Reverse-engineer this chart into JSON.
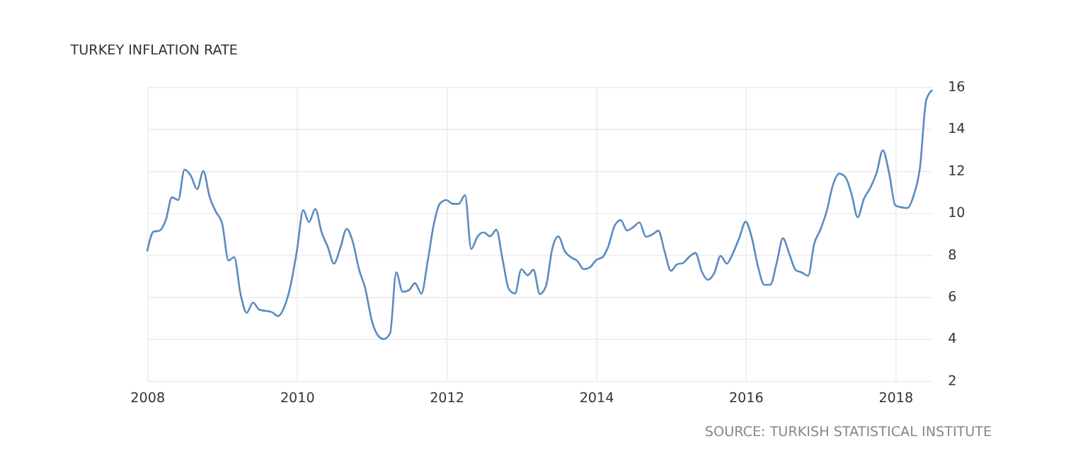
{
  "chart_data": {
    "type": "line",
    "title": "TURKEY INFLATION RATE",
    "annotations": [
      "SOURCE: TURKISH STATISTICAL INSTITUTE"
    ],
    "x": [
      "2008-01",
      "2008-02",
      "2008-03",
      "2008-04",
      "2008-05",
      "2008-06",
      "2008-07",
      "2008-08",
      "2008-09",
      "2008-10",
      "2008-11",
      "2008-12",
      "2009-01",
      "2009-02",
      "2009-03",
      "2009-04",
      "2009-05",
      "2009-06",
      "2009-07",
      "2009-08",
      "2009-09",
      "2009-10",
      "2009-11",
      "2009-12",
      "2010-01",
      "2010-02",
      "2010-03",
      "2010-04",
      "2010-05",
      "2010-06",
      "2010-07",
      "2010-08",
      "2010-09",
      "2010-10",
      "2010-11",
      "2010-12",
      "2011-01",
      "2011-02",
      "2011-03",
      "2011-04",
      "2011-05",
      "2011-06",
      "2011-07",
      "2011-08",
      "2011-09",
      "2011-10",
      "2011-11",
      "2011-12",
      "2012-01",
      "2012-02",
      "2012-03",
      "2012-04",
      "2012-05",
      "2012-06",
      "2012-07",
      "2012-08",
      "2012-09",
      "2012-10",
      "2012-11",
      "2012-12",
      "2013-01",
      "2013-02",
      "2013-03",
      "2013-04",
      "2013-05",
      "2013-06",
      "2013-07",
      "2013-08",
      "2013-09",
      "2013-10",
      "2013-11",
      "2013-12",
      "2014-01",
      "2014-02",
      "2014-03",
      "2014-04",
      "2014-05",
      "2014-06",
      "2014-07",
      "2014-08",
      "2014-09",
      "2014-10",
      "2014-11",
      "2014-12",
      "2015-01",
      "2015-02",
      "2015-03",
      "2015-04",
      "2015-05",
      "2015-06",
      "2015-07",
      "2015-08",
      "2015-09",
      "2015-10",
      "2015-11",
      "2015-12",
      "2016-01",
      "2016-02",
      "2016-03",
      "2016-04",
      "2016-05",
      "2016-06",
      "2016-07",
      "2016-08",
      "2016-09",
      "2016-10",
      "2016-11",
      "2016-12",
      "2017-01",
      "2017-02",
      "2017-03",
      "2017-04",
      "2017-05",
      "2017-06",
      "2017-07",
      "2017-08",
      "2017-09",
      "2017-10",
      "2017-11",
      "2017-12",
      "2018-01",
      "2018-02",
      "2018-03",
      "2018-04",
      "2018-05",
      "2018-06",
      "2018-07"
    ],
    "series": [
      {
        "color": "#5b8bc0",
        "values": [
          8.17,
          9.1,
          9.15,
          9.66,
          10.74,
          10.61,
          12.06,
          11.77,
          11.13,
          11.99,
          10.76,
          10.06,
          9.5,
          7.73,
          7.89,
          6.13,
          5.24,
          5.73,
          5.39,
          5.33,
          5.27,
          5.08,
          5.53,
          6.53,
          8.19,
          10.13,
          9.56,
          10.19,
          9.1,
          8.37,
          7.58,
          8.33,
          9.24,
          8.62,
          7.29,
          6.4,
          4.9,
          4.16,
          3.99,
          4.26,
          7.17,
          6.24,
          6.31,
          6.65,
          6.15,
          7.66,
          9.48,
          10.45,
          10.61,
          10.43,
          10.43,
          10.84,
          8.28,
          8.87,
          9.07,
          8.88,
          9.19,
          7.8,
          6.37,
          6.16,
          7.31,
          7.03,
          7.29,
          6.13,
          6.51,
          8.3,
          8.88,
          8.17,
          7.88,
          7.71,
          7.32,
          7.4,
          7.75,
          7.89,
          8.39,
          9.38,
          9.66,
          9.16,
          9.32,
          9.54,
          8.86,
          8.96,
          9.15,
          8.17,
          7.24,
          7.55,
          7.61,
          7.91,
          8.09,
          7.2,
          6.81,
          7.14,
          7.95,
          7.58,
          8.1,
          8.81,
          9.58,
          8.78,
          7.46,
          6.57,
          6.58,
          7.64,
          8.79,
          8.05,
          7.28,
          7.16,
          7.0,
          8.53,
          9.22,
          10.13,
          11.29,
          11.87,
          11.72,
          10.9,
          9.79,
          10.68,
          11.2,
          11.9,
          12.98,
          11.92,
          10.35,
          10.26,
          10.23,
          10.85,
          12.15,
          15.39,
          15.85
        ]
      }
    ],
    "xlim": [
      "2008-01",
      "2018-07"
    ],
    "xticks": [
      "2008",
      "2010",
      "2012",
      "2014",
      "2016",
      "2018"
    ],
    "ylim": [
      2,
      16
    ],
    "yticks": [
      2,
      4,
      6,
      8,
      10,
      12,
      14,
      16
    ],
    "grid": true,
    "legend": false,
    "marker": "none",
    "line_style": "solid"
  }
}
